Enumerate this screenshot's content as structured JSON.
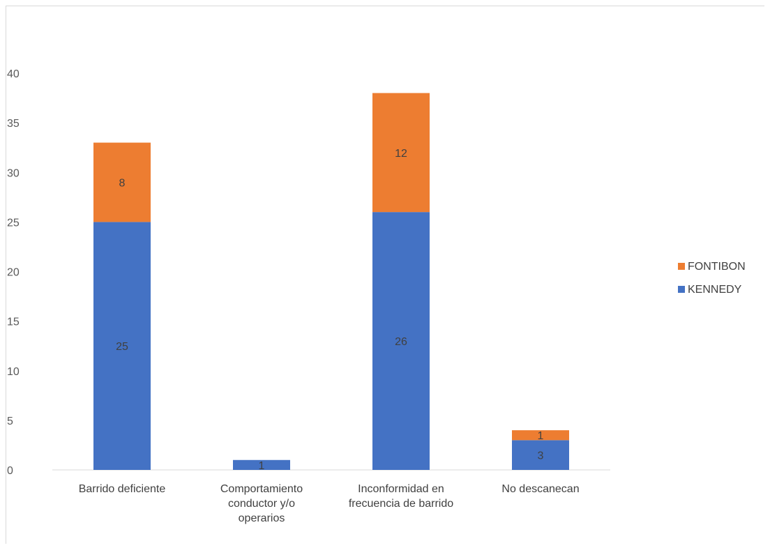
{
  "chart_data": {
    "type": "bar",
    "stacked": true,
    "categories": [
      [
        "Barrido deficiente"
      ],
      [
        "Comportamiento",
        "conductor y/o",
        "operarios"
      ],
      [
        "Inconformidad en",
        "frecuencia de barrido"
      ],
      [
        "No descanecan"
      ]
    ],
    "series": [
      {
        "name": "KENNEDY",
        "color": "#4472c4",
        "values": [
          25,
          1,
          26,
          3
        ]
      },
      {
        "name": "FONTIBON",
        "color": "#ed7d31",
        "values": [
          8,
          0,
          12,
          1
        ]
      }
    ],
    "ylim": [
      0,
      40
    ],
    "yticks": [
      0,
      5,
      10,
      15,
      20,
      25,
      30,
      35,
      40
    ],
    "grid": false,
    "legend_position": "right",
    "legend_order": [
      "FONTIBON",
      "KENNEDY"
    ],
    "data_labels": true
  }
}
